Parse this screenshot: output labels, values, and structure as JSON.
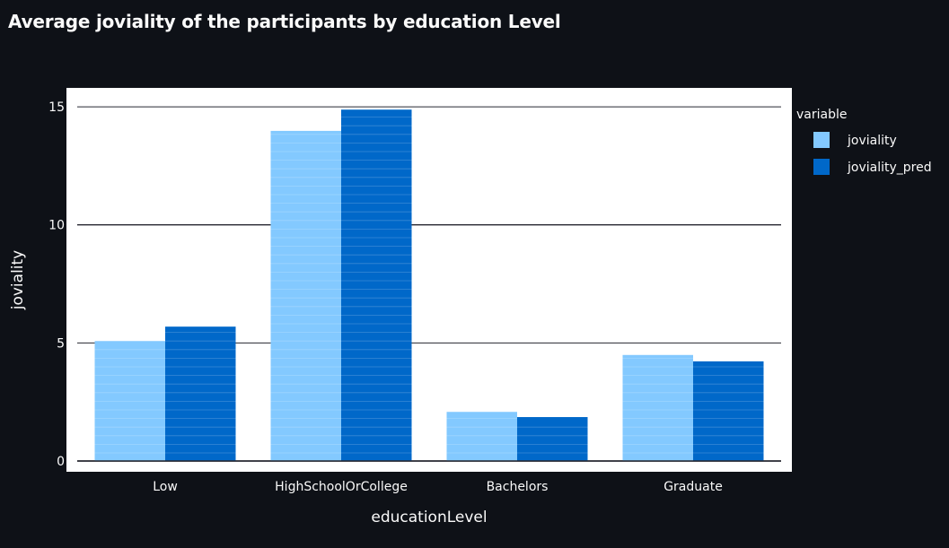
{
  "title": "Average joviality of the participants by education Level",
  "chart_data": {
    "type": "bar",
    "title": "Average joviality of the participants by education Level",
    "categories": [
      "Low",
      "HighSchoolOrCollege",
      "Bachelors",
      "Graduate"
    ],
    "series": [
      {
        "name": "joviality",
        "values": [
          5.08,
          13.98,
          2.08,
          4.49
        ],
        "color": "#83c9ff"
      },
      {
        "name": "joviality_pred",
        "values": [
          5.69,
          14.88,
          1.86,
          4.22
        ],
        "color": "#0068c9"
      }
    ],
    "xlabel": "educationLevel",
    "ylabel": "joviality",
    "ylim": [
      0,
      15.8
    ],
    "yticks": [
      0,
      5,
      10,
      15
    ],
    "legend_title": "variable",
    "legend_position": "top-right",
    "grid": true,
    "barmode": "group",
    "plot_background": "#ffffff",
    "page_background": "#0e1117"
  }
}
